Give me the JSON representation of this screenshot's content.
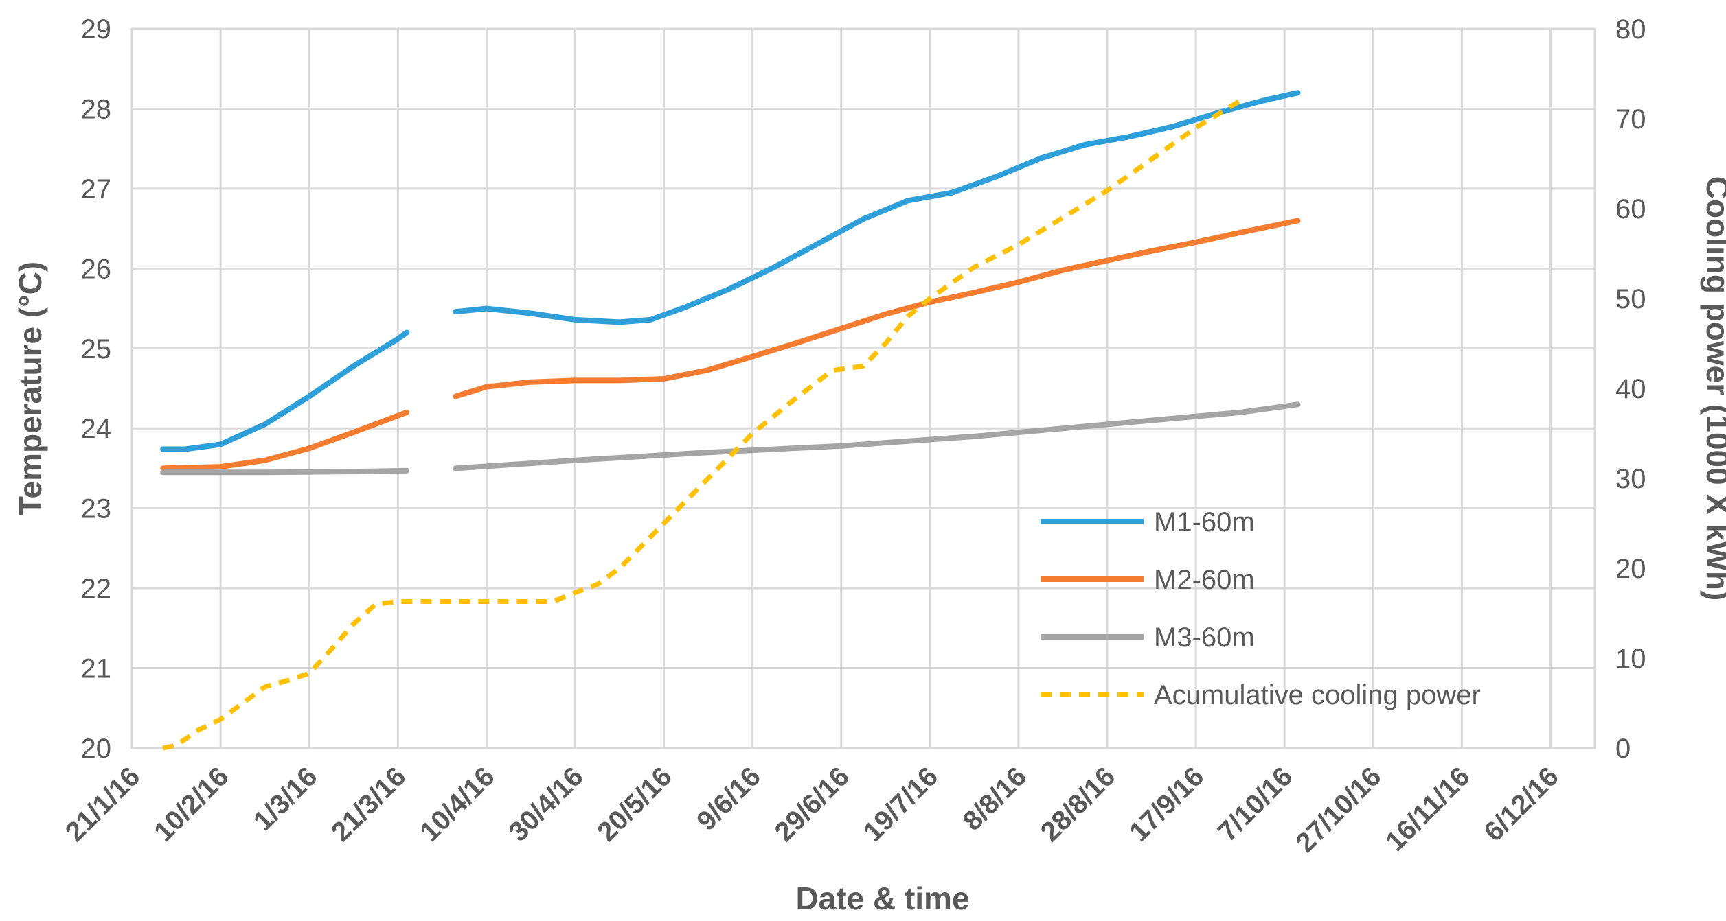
{
  "chart_data": {
    "type": "line",
    "xlabel": "Date & time",
    "ylabel": "Temperature (°C)",
    "y2label": "Cooling power (1000 X kWh)",
    "x_ticks": [
      "21/1/16",
      "10/2/16",
      "1/3/16",
      "21/3/16",
      "10/4/16",
      "30/4/16",
      "20/5/16",
      "9/6/16",
      "29/6/16",
      "19/7/16",
      "8/8/16",
      "28/8/16",
      "17/9/16",
      "7/10/16",
      "27/10/16",
      "16/11/16",
      "6/12/16"
    ],
    "xlim_days": [
      0,
      330
    ],
    "ylim": [
      20,
      29
    ],
    "y_ticks": [
      20,
      21,
      22,
      23,
      24,
      25,
      26,
      27,
      28,
      29
    ],
    "y2lim": [
      0,
      80
    ],
    "y2_ticks": [
      0,
      10,
      20,
      30,
      40,
      50,
      60,
      70,
      80
    ],
    "legend_position": "right-middle",
    "series": [
      {
        "name": "M1-60m",
        "axis": "left",
        "color": "#2e9fd8",
        "dash": "solid",
        "segments": [
          [
            [
              7,
              23.74
            ],
            [
              12,
              23.74
            ],
            [
              20,
              23.8
            ],
            [
              30,
              24.05
            ],
            [
              40,
              24.4
            ],
            [
              50,
              24.78
            ],
            [
              60,
              25.12
            ],
            [
              62,
              25.2
            ]
          ],
          [
            [
              73,
              25.46
            ],
            [
              80,
              25.5
            ],
            [
              90,
              25.44
            ],
            [
              100,
              25.36
            ],
            [
              110,
              25.33
            ],
            [
              117,
              25.36
            ],
            [
              125,
              25.52
            ],
            [
              135,
              25.75
            ],
            [
              145,
              26.02
            ],
            [
              155,
              26.32
            ],
            [
              165,
              26.62
            ],
            [
              175,
              26.85
            ],
            [
              185,
              26.95
            ],
            [
              195,
              27.15
            ],
            [
              205,
              27.38
            ],
            [
              215,
              27.55
            ],
            [
              225,
              27.65
            ],
            [
              235,
              27.78
            ],
            [
              245,
              27.95
            ],
            [
              255,
              28.1
            ],
            [
              263,
              28.2
            ]
          ]
        ]
      },
      {
        "name": "M2-60m",
        "axis": "left",
        "color": "#f47c30",
        "dash": "solid",
        "segments": [
          [
            [
              7,
              23.5
            ],
            [
              20,
              23.52
            ],
            [
              30,
              23.6
            ],
            [
              40,
              23.75
            ],
            [
              50,
              23.95
            ],
            [
              62,
              24.2
            ]
          ],
          [
            [
              73,
              24.4
            ],
            [
              80,
              24.52
            ],
            [
              90,
              24.58
            ],
            [
              100,
              24.6
            ],
            [
              110,
              24.6
            ],
            [
              120,
              24.62
            ],
            [
              130,
              24.73
            ],
            [
              140,
              24.9
            ],
            [
              150,
              25.07
            ],
            [
              160,
              25.25
            ],
            [
              170,
              25.43
            ],
            [
              180,
              25.58
            ],
            [
              190,
              25.7
            ],
            [
              200,
              25.83
            ],
            [
              210,
              25.98
            ],
            [
              220,
              26.1
            ],
            [
              230,
              26.22
            ],
            [
              240,
              26.33
            ],
            [
              250,
              26.45
            ],
            [
              263,
              26.6
            ]
          ]
        ]
      },
      {
        "name": "M3-60m",
        "axis": "left",
        "color": "#a5a5a5",
        "dash": "solid",
        "segments": [
          [
            [
              7,
              23.45
            ],
            [
              30,
              23.45
            ],
            [
              50,
              23.46
            ],
            [
              62,
              23.47
            ]
          ],
          [
            [
              73,
              23.5
            ],
            [
              100,
              23.6
            ],
            [
              130,
              23.7
            ],
            [
              160,
              23.78
            ],
            [
              190,
              23.9
            ],
            [
              220,
              24.05
            ],
            [
              250,
              24.2
            ],
            [
              263,
              24.3
            ]
          ]
        ]
      },
      {
        "name": "Acumulative cooling power",
        "axis": "right",
        "color": "#ffc000",
        "dash": "dashed",
        "segments": [
          [
            [
              7,
              0
            ],
            [
              10,
              0.3
            ],
            [
              15,
              2
            ],
            [
              20,
              3.2
            ],
            [
              25,
              5
            ],
            [
              30,
              6.8
            ],
            [
              35,
              7.5
            ],
            [
              40,
              8.3
            ],
            [
              45,
              11
            ],
            [
              50,
              13.8
            ],
            [
              55,
              16
            ],
            [
              60,
              16.3
            ],
            [
              70,
              16.3
            ],
            [
              80,
              16.3
            ],
            [
              90,
              16.3
            ],
            [
              95,
              16.3
            ],
            [
              100,
              17.3
            ],
            [
              105,
              18.2
            ],
            [
              110,
              20
            ],
            [
              115,
              22.5
            ],
            [
              120,
              25
            ],
            [
              130,
              30
            ],
            [
              140,
              35
            ],
            [
              150,
              39
            ],
            [
              158,
              42
            ],
            [
              165,
              42.5
            ],
            [
              170,
              45
            ],
            [
              175,
              48
            ],
            [
              180,
              50
            ],
            [
              190,
              53.5
            ],
            [
              200,
              56
            ],
            [
              210,
              59
            ],
            [
              220,
              62
            ],
            [
              230,
              65.5
            ],
            [
              240,
              69
            ],
            [
              250,
              72
            ]
          ]
        ]
      }
    ]
  }
}
